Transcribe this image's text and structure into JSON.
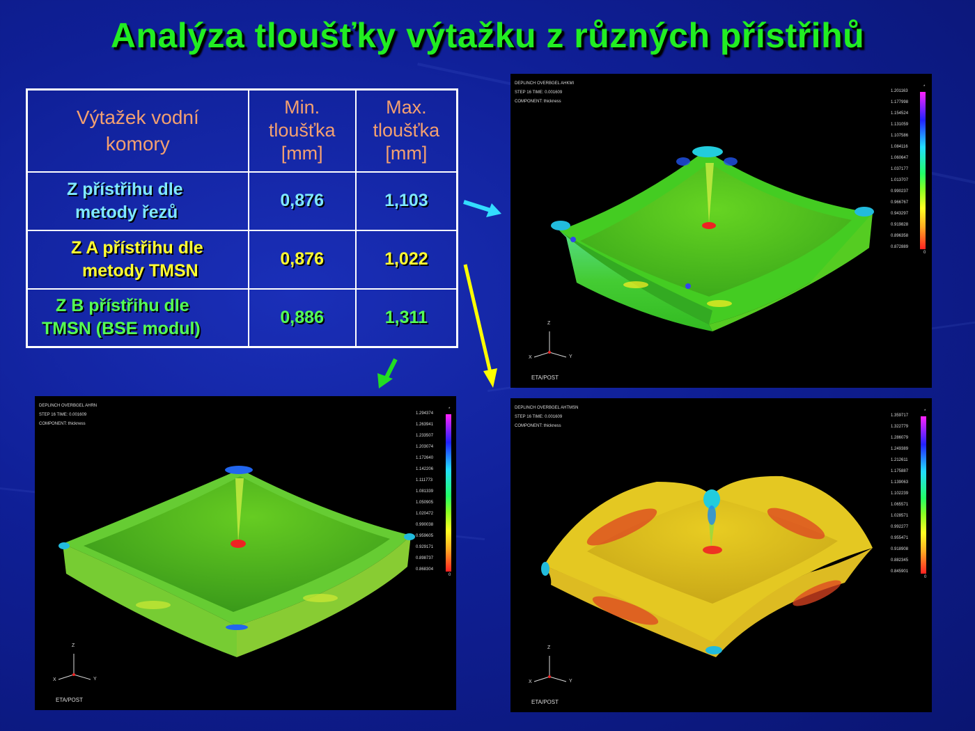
{
  "slide": {
    "title": "Analýza tloušťky výtažku z různých přístřihů"
  },
  "table": {
    "header": {
      "col1": [
        "Výtažek vodní",
        "komory"
      ],
      "col2": [
        "Min.",
        "tloušťka",
        "[mm]"
      ],
      "col3": [
        "Max.",
        "tloušťka",
        "[mm]"
      ]
    },
    "rows": [
      {
        "label": [
          "Z přístřihu dle",
          "metody řezů"
        ],
        "min": "0,876",
        "max": "1,103",
        "color": "#7fe8ff"
      },
      {
        "label": [
          "Z A přístřihu dle",
          "metody TMSN"
        ],
        "min": "0,876",
        "max": "1,022",
        "color": "#ffff33"
      },
      {
        "label": [
          "Z B přístřihu dle",
          "TMSN (BSE modul)"
        ],
        "min": "0,886",
        "max": "1,311",
        "color": "#55ff55"
      }
    ]
  },
  "panels": {
    "top_right": {
      "info": [
        "DEPLINCH OVERBGEL AHKMI",
        "STEP 16   TIME:    0.001609",
        "COMPONENT: thickness"
      ],
      "scale": [
        "1.201163",
        "1.177998",
        "1.154524",
        "1.131059",
        "1.107586",
        "1.084116",
        "1.060647",
        "1.037177",
        "1.013707",
        "0.990237",
        "0.966767",
        "0.943297",
        "0.919828",
        "0.896358",
        "0.872889"
      ],
      "scale_end": [
        "*",
        "0"
      ],
      "axes": {
        "z": "Z",
        "x": "X",
        "y": "Y"
      },
      "footer": "ETA/POST"
    },
    "bottom_left": {
      "info": [
        "DEPLINCH OVERBGEL AHRN",
        "STEP 16   TIME:    0.001609",
        "COMPONENT: thickness"
      ],
      "scale": [
        "1.294374",
        "1.263941",
        "1.233507",
        "1.203074",
        "1.172640",
        "1.142206",
        "1.111773",
        "1.081339",
        "1.050905",
        "1.020472",
        "0.990038",
        "0.959605",
        "0.929171",
        "0.898737",
        "0.868304"
      ],
      "scale_end": [
        "*",
        "0"
      ],
      "axes": {
        "z": "Z",
        "x": "X",
        "y": "Y"
      },
      "footer": "ETA/POST"
    },
    "bottom_right": {
      "info": [
        "DEPLINCH OVERBGEL AHTMSN",
        "STEP 16   TIME:    0.001609",
        "COMPONENT: thickness"
      ],
      "scale": [
        "1.359717",
        "1.322779",
        "1.286079",
        "1.249389",
        "1.212611",
        "1.175887",
        "1.139063",
        "1.102239",
        "1.065571",
        "1.028571",
        "0.992277",
        "0.955471",
        "0.918908",
        "0.882345",
        "0.845901"
      ],
      "scale_end": [
        "*",
        "0"
      ],
      "axes": {
        "z": "Z",
        "x": "X",
        "y": "Y"
      },
      "footer": "ETA/POST"
    }
  },
  "colors": {
    "title": "#22ee22",
    "table_header": "#f3a070",
    "arrow_cyan": "#33ddff",
    "arrow_yellow": "#ffff00",
    "arrow_green": "#22dd22",
    "background": "#0f1f96"
  }
}
